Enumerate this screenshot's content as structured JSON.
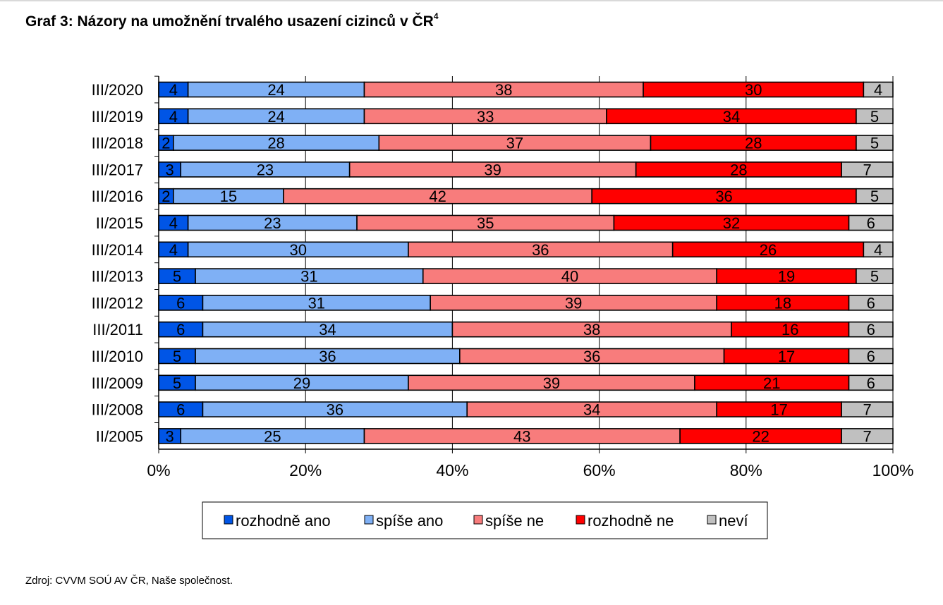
{
  "title": "Graf 3: Názory na umožnění trvalého usazení cizinců v ČR",
  "title_sup": "4",
  "source": "Zdroj: CVVM SOÚ AV ČR, Naše společnost.",
  "chart_data": {
    "type": "bar",
    "orientation": "horizontal",
    "stacked": true,
    "percent_scale": true,
    "categories": [
      "III/2020",
      "III/2019",
      "III/2018",
      "III/2017",
      "III/2016",
      "II/2015",
      "III/2014",
      "III/2013",
      "III/2012",
      "III/2011",
      "III/2010",
      "III/2009",
      "III/2008",
      "II/2005"
    ],
    "series": [
      {
        "name": "rozhodně ano",
        "color": "#0055e6",
        "values": [
          4,
          4,
          2,
          3,
          2,
          4,
          4,
          5,
          6,
          6,
          5,
          5,
          6,
          3
        ]
      },
      {
        "name": "spíše ano",
        "color": "#7fb0f5",
        "values": [
          24,
          24,
          28,
          23,
          15,
          23,
          30,
          31,
          31,
          34,
          36,
          29,
          36,
          25
        ]
      },
      {
        "name": "spíše ne",
        "color": "#f87c7c",
        "values": [
          38,
          33,
          37,
          39,
          42,
          35,
          36,
          40,
          39,
          38,
          36,
          39,
          34,
          43
        ]
      },
      {
        "name": "rozhodně ne",
        "color": "#ff0000",
        "values": [
          30,
          34,
          28,
          28,
          36,
          32,
          26,
          19,
          18,
          16,
          17,
          21,
          17,
          22
        ]
      },
      {
        "name": "neví",
        "color": "#c0c0c0",
        "values": [
          4,
          5,
          5,
          7,
          5,
          6,
          4,
          5,
          6,
          6,
          6,
          6,
          7,
          7
        ]
      }
    ],
    "x_ticks": [
      "0%",
      "20%",
      "40%",
      "60%",
      "80%",
      "100%"
    ],
    "xlim": [
      0,
      100
    ],
    "legend_position": "bottom",
    "grid": true
  }
}
